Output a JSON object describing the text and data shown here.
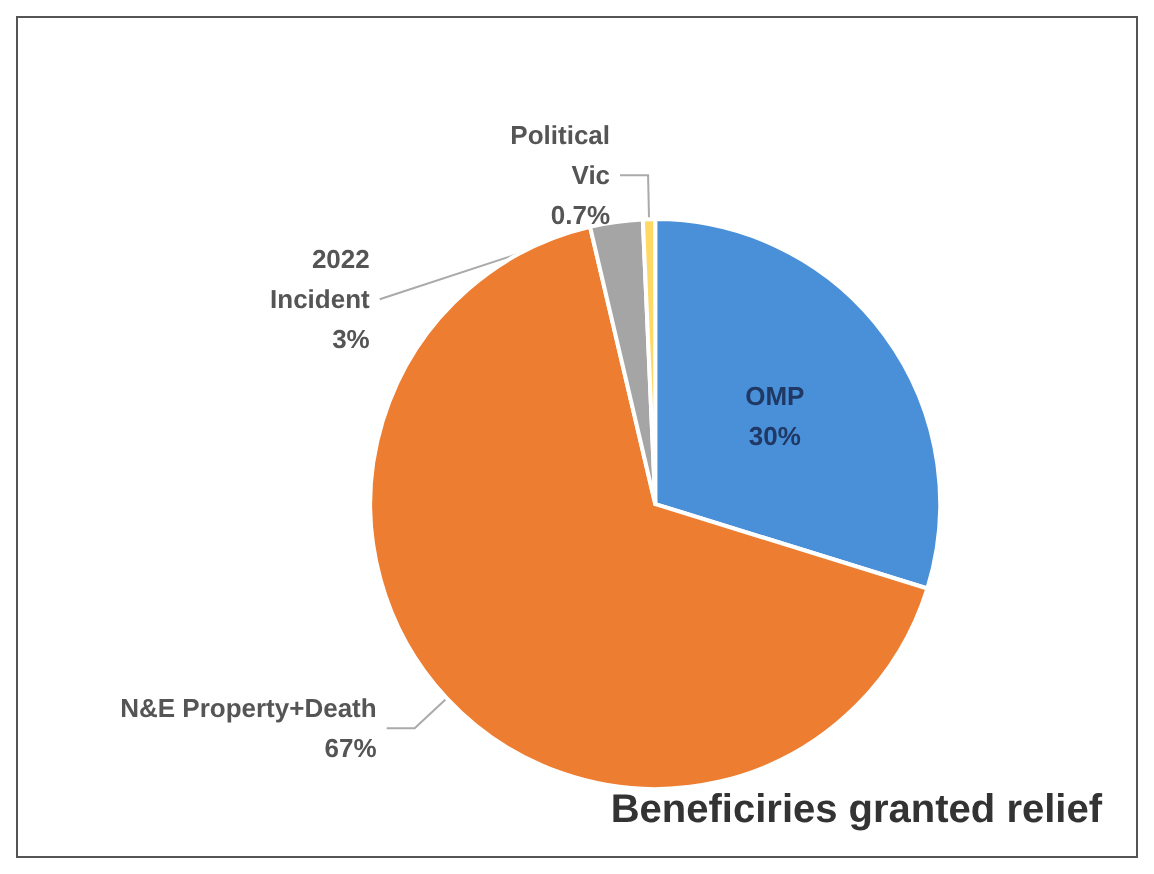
{
  "chart_data": {
    "type": "pie",
    "title": "Beneficiries granted relief",
    "categories": [
      "OMP",
      "N&E Property+Death",
      "2022\nIncident",
      "Political\nVic"
    ],
    "values": [
      30,
      67,
      3,
      0.7
    ],
    "value_labels": [
      "30%",
      "67%",
      "3%",
      "0.7%"
    ],
    "colors": [
      "#4a90d9",
      "#ed7d31",
      "#a5a5a5",
      "#ffd966"
    ],
    "legend": false
  }
}
